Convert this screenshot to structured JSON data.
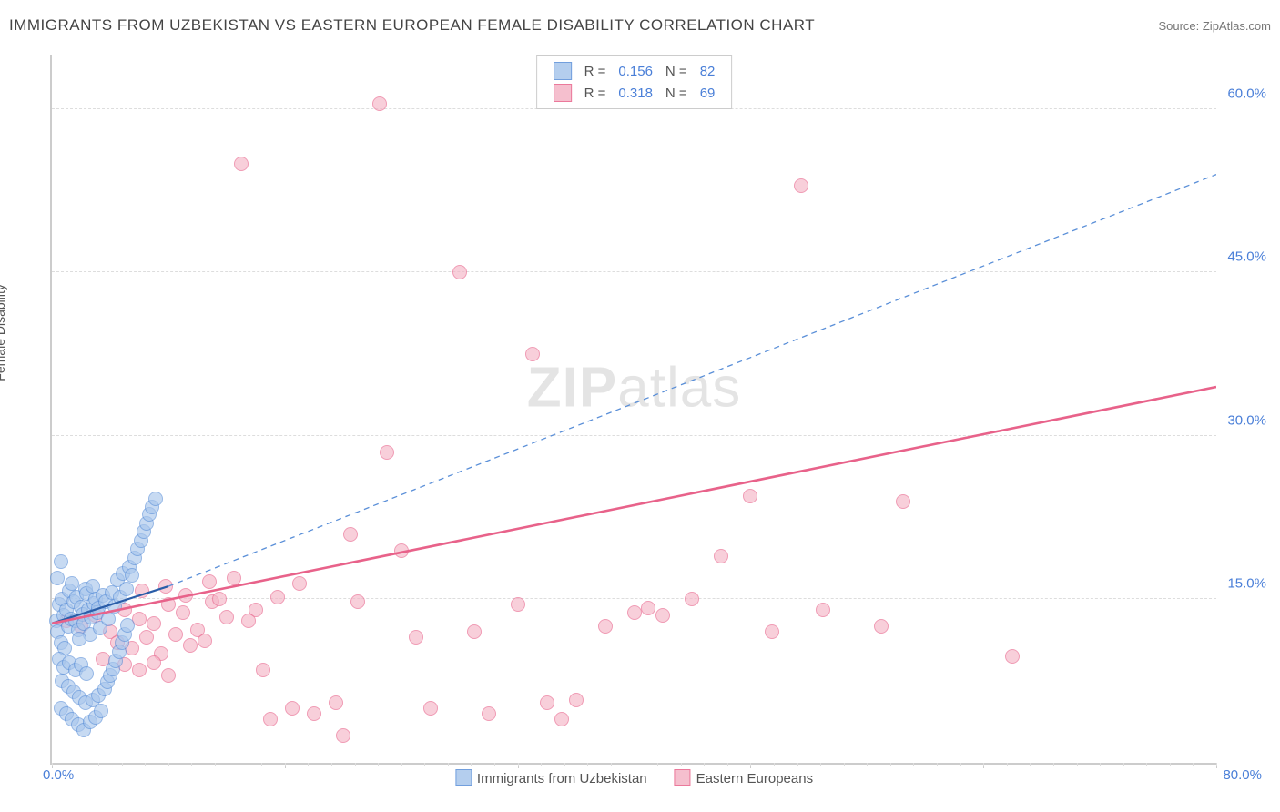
{
  "title": "IMMIGRANTS FROM UZBEKISTAN VS EASTERN EUROPEAN FEMALE DISABILITY CORRELATION CHART",
  "source_label": "Source: ",
  "source_name": "ZipAtlas.com",
  "ylabel": "Female Disability",
  "watermark_bold": "ZIP",
  "watermark_rest": "atlas",
  "chart": {
    "type": "scatter",
    "xlim": [
      0,
      80
    ],
    "ylim": [
      0,
      65
    ],
    "x_origin_label": "0.0%",
    "x_max_label": "80.0%",
    "y_ticks": [
      {
        "v": 15,
        "label": "15.0%"
      },
      {
        "v": 30,
        "label": "30.0%"
      },
      {
        "v": 45,
        "label": "45.0%"
      },
      {
        "v": 60,
        "label": "60.0%"
      }
    ],
    "x_major_ticks": [
      0,
      16,
      32,
      48,
      64,
      80
    ],
    "x_minor_step": 1.6,
    "background_color": "#ffffff",
    "grid_color": "#dddddd",
    "axis_color": "#cccccc",
    "tick_label_color": "#4a7fd8",
    "marker_radius": 8,
    "marker_border_width": 1.5,
    "marker_fill_opacity": 0.28
  },
  "series": [
    {
      "name": "Immigrants from Uzbekistan",
      "color_border": "#5a8fd8",
      "color_fill": "#a8c6ec",
      "R": "0.156",
      "N": "82",
      "trend": {
        "x1": 0,
        "y1": 12.8,
        "x2": 8.0,
        "y2": 16.2,
        "dashed": false,
        "width": 2.2,
        "color": "#2a5da8"
      },
      "trend_ext": {
        "x1": 8.0,
        "y1": 16.2,
        "x2": 80,
        "y2": 54.0,
        "dashed": true,
        "width": 1.3,
        "color": "#5a8fd8"
      },
      "points": [
        [
          0.3,
          13.0
        ],
        [
          0.5,
          14.5
        ],
        [
          0.4,
          12.0
        ],
        [
          0.6,
          11.0
        ],
        [
          0.8,
          13.5
        ],
        [
          0.7,
          15.0
        ],
        [
          1.0,
          14.0
        ],
        [
          1.1,
          12.5
        ],
        [
          1.3,
          13.2
        ],
        [
          1.2,
          15.8
        ],
        [
          1.5,
          14.8
        ],
        [
          1.4,
          16.5
        ],
        [
          1.6,
          13.0
        ],
        [
          1.8,
          12.2
        ],
        [
          1.7,
          15.2
        ],
        [
          2.0,
          14.3
        ],
        [
          2.1,
          13.6
        ],
        [
          2.3,
          16.0
        ],
        [
          2.2,
          12.8
        ],
        [
          2.5,
          14.0
        ],
        [
          2.4,
          15.5
        ],
        [
          2.7,
          13.4
        ],
        [
          2.6,
          11.8
        ],
        [
          2.9,
          14.6
        ],
        [
          2.8,
          16.2
        ],
        [
          3.1,
          13.8
        ],
        [
          3.0,
          15.0
        ],
        [
          3.3,
          12.4
        ],
        [
          3.2,
          14.2
        ],
        [
          3.5,
          15.4
        ],
        [
          0.9,
          10.5
        ],
        [
          1.9,
          11.4
        ],
        [
          0.5,
          9.5
        ],
        [
          0.8,
          8.8
        ],
        [
          1.2,
          9.2
        ],
        [
          1.6,
          8.5
        ],
        [
          2.0,
          9.0
        ],
        [
          2.4,
          8.2
        ],
        [
          0.7,
          7.5
        ],
        [
          1.1,
          7.0
        ],
        [
          1.5,
          6.5
        ],
        [
          1.9,
          6.0
        ],
        [
          2.3,
          5.5
        ],
        [
          0.6,
          5.0
        ],
        [
          1.0,
          4.5
        ],
        [
          1.4,
          4.0
        ],
        [
          1.8,
          3.5
        ],
        [
          2.2,
          3.0
        ],
        [
          2.6,
          3.8
        ],
        [
          3.0,
          4.2
        ],
        [
          3.4,
          4.8
        ],
        [
          2.8,
          5.8
        ],
        [
          3.2,
          6.2
        ],
        [
          3.6,
          6.8
        ],
        [
          3.8,
          7.4
        ],
        [
          4.0,
          8.0
        ],
        [
          4.2,
          8.6
        ],
        [
          4.4,
          9.4
        ],
        [
          4.6,
          10.2
        ],
        [
          4.8,
          11.0
        ],
        [
          5.0,
          11.8
        ],
        [
          5.2,
          12.6
        ],
        [
          3.7,
          14.8
        ],
        [
          3.9,
          13.2
        ],
        [
          4.1,
          15.6
        ],
        [
          4.3,
          14.4
        ],
        [
          4.5,
          16.8
        ],
        [
          4.7,
          15.2
        ],
        [
          4.9,
          17.4
        ],
        [
          5.1,
          16.0
        ],
        [
          5.3,
          18.0
        ],
        [
          5.5,
          17.2
        ],
        [
          5.7,
          18.8
        ],
        [
          5.9,
          19.6
        ],
        [
          6.1,
          20.4
        ],
        [
          6.3,
          21.2
        ],
        [
          6.5,
          22.0
        ],
        [
          6.7,
          22.8
        ],
        [
          6.9,
          23.5
        ],
        [
          7.1,
          24.2
        ],
        [
          0.4,
          17.0
        ],
        [
          0.6,
          18.5
        ]
      ]
    },
    {
      "name": "Eastern Europeans",
      "color_border": "#e8628a",
      "color_fill": "#f4b4c6",
      "R": "0.318",
      "N": "69",
      "trend": {
        "x1": 0,
        "y1": 12.8,
        "x2": 80,
        "y2": 34.5,
        "dashed": false,
        "width": 2.6,
        "color": "#e8628a"
      },
      "points": [
        [
          1.0,
          13.0
        ],
        [
          2.0,
          12.5
        ],
        [
          3.0,
          13.5
        ],
        [
          4.0,
          12.0
        ],
        [
          5.0,
          14.0
        ],
        [
          6.0,
          13.2
        ],
        [
          7.0,
          12.8
        ],
        [
          8.0,
          14.5
        ],
        [
          9.0,
          13.8
        ],
        [
          10.0,
          12.2
        ],
        [
          11.0,
          14.8
        ],
        [
          12.0,
          13.4
        ],
        [
          4.5,
          11.0
        ],
        [
          5.5,
          10.5
        ],
        [
          6.5,
          11.5
        ],
        [
          7.5,
          10.0
        ],
        [
          8.5,
          11.8
        ],
        [
          9.5,
          10.8
        ],
        [
          10.5,
          11.2
        ],
        [
          3.5,
          9.5
        ],
        [
          5.0,
          9.0
        ],
        [
          6.0,
          8.5
        ],
        [
          7.0,
          9.2
        ],
        [
          8.0,
          8.0
        ],
        [
          14.0,
          14.0
        ],
        [
          14.5,
          8.5
        ],
        [
          15.0,
          4.0
        ],
        [
          16.5,
          5.0
        ],
        [
          18.0,
          4.5
        ],
        [
          19.5,
          5.5
        ],
        [
          20.0,
          2.5
        ],
        [
          21.0,
          14.8
        ],
        [
          23.0,
          28.5
        ],
        [
          24.0,
          19.5
        ],
        [
          25.0,
          11.5
        ],
        [
          26.0,
          5.0
        ],
        [
          28.0,
          45.0
        ],
        [
          29.0,
          12.0
        ],
        [
          30.0,
          4.5
        ],
        [
          32.0,
          14.5
        ],
        [
          33.0,
          37.5
        ],
        [
          34.0,
          5.5
        ],
        [
          35.0,
          4.0
        ],
        [
          36.0,
          5.8
        ],
        [
          38.0,
          12.5
        ],
        [
          40.0,
          13.8
        ],
        [
          41.0,
          14.2
        ],
        [
          13.0,
          55.0
        ],
        [
          20.5,
          21.0
        ],
        [
          12.5,
          17.0
        ],
        [
          17.0,
          16.5
        ],
        [
          15.5,
          15.2
        ],
        [
          46.0,
          19.0
        ],
        [
          48.0,
          24.5
        ],
        [
          49.5,
          12.0
        ],
        [
          51.5,
          53.0
        ],
        [
          53.0,
          14.0
        ],
        [
          57.0,
          12.5
        ],
        [
          58.5,
          24.0
        ],
        [
          66.0,
          9.8
        ],
        [
          6.2,
          15.8
        ],
        [
          7.8,
          16.2
        ],
        [
          9.2,
          15.4
        ],
        [
          10.8,
          16.6
        ],
        [
          11.5,
          15.0
        ],
        [
          13.5,
          13.0
        ],
        [
          22.5,
          60.5
        ],
        [
          42.0,
          13.5
        ],
        [
          44.0,
          15.0
        ]
      ]
    }
  ]
}
